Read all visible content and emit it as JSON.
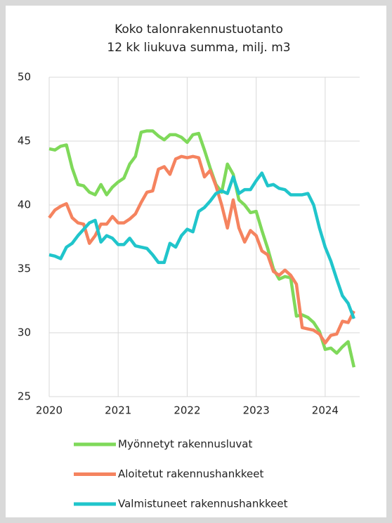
{
  "chart_data": {
    "type": "line",
    "title": "Koko talonrakennustuotanto",
    "subtitle": "12 kk liukuva summa, milj. m3",
    "x": [
      2020,
      2020.083,
      2020.167,
      2020.25,
      2020.333,
      2020.417,
      2020.5,
      2020.583,
      2020.667,
      2020.75,
      2020.833,
      2020.917,
      2021,
      2021.083,
      2021.167,
      2021.25,
      2021.333,
      2021.417,
      2021.5,
      2021.583,
      2021.667,
      2021.75,
      2021.833,
      2021.917,
      2022,
      2022.083,
      2022.167,
      2022.25,
      2022.333,
      2022.417,
      2022.5,
      2022.583,
      2022.667,
      2022.75,
      2022.833,
      2022.917,
      2023,
      2023.083,
      2023.167,
      2023.25,
      2023.333,
      2023.417,
      2023.5,
      2023.583,
      2023.667,
      2023.75,
      2023.833,
      2023.917,
      2024,
      2024.083,
      2024.167,
      2024.25,
      2024.333,
      2024.417
    ],
    "series": [
      {
        "name": "Myönnetyt rakennusluvat",
        "color": "#7fd95a",
        "values": [
          44.4,
          44.3,
          44.6,
          44.7,
          42.9,
          41.6,
          41.5,
          41.0,
          40.8,
          41.6,
          40.8,
          41.4,
          41.8,
          42.1,
          43.2,
          43.8,
          45.7,
          45.8,
          45.8,
          45.4,
          45.1,
          45.5,
          45.5,
          45.3,
          44.9,
          45.5,
          45.6,
          44.3,
          42.9,
          41.6,
          41.0,
          43.2,
          42.4,
          40.4,
          40.0,
          39.4,
          39.5,
          38.0,
          36.6,
          35.0,
          34.2,
          34.4,
          34.3,
          31.3,
          31.4,
          31.2,
          30.8,
          30.1,
          28.7,
          28.8,
          28.4,
          28.9,
          29.3,
          27.3
        ]
      },
      {
        "name": "Aloitetut rakennushankkeet",
        "color": "#f5835f",
        "values": [
          39.0,
          39.6,
          39.9,
          40.1,
          39.0,
          38.6,
          38.5,
          37.0,
          37.6,
          38.5,
          38.5,
          39.1,
          38.6,
          38.6,
          38.9,
          39.3,
          40.2,
          41.0,
          41.1,
          42.8,
          43.0,
          42.4,
          43.6,
          43.8,
          43.7,
          43.8,
          43.7,
          42.2,
          42.7,
          41.5,
          40.0,
          38.2,
          40.4,
          38.2,
          37.1,
          38.0,
          37.6,
          36.4,
          36.1,
          34.8,
          34.5,
          34.9,
          34.5,
          33.8,
          30.4,
          30.3,
          30.2,
          29.9,
          29.2,
          29.8,
          29.9,
          30.9,
          30.8,
          31.7
        ]
      },
      {
        "name": "Valmistuneet rakennushankkeet",
        "color": "#20c5cb",
        "values": [
          36.1,
          36.0,
          35.8,
          36.7,
          37.0,
          37.6,
          38.1,
          38.6,
          38.8,
          37.1,
          37.6,
          37.4,
          36.9,
          36.9,
          37.4,
          36.8,
          36.7,
          36.6,
          36.1,
          35.5,
          35.5,
          37.0,
          36.7,
          37.6,
          38.1,
          37.9,
          39.5,
          39.8,
          40.3,
          40.9,
          41.1,
          40.9,
          42.2,
          40.9,
          41.2,
          41.2,
          41.9,
          42.5,
          41.5,
          41.6,
          41.3,
          41.2,
          40.8,
          40.8,
          40.8,
          40.9,
          40.0,
          38.2,
          36.7,
          35.6,
          34.2,
          32.9,
          32.3,
          31.1
        ]
      }
    ],
    "xlim": [
      2020,
      2024.5
    ],
    "xticks": [
      2020,
      2021,
      2022,
      2023,
      2024
    ],
    "ylim": [
      25,
      50
    ],
    "yticks": [
      25,
      30,
      35,
      40,
      45,
      50
    ],
    "grid": true
  }
}
